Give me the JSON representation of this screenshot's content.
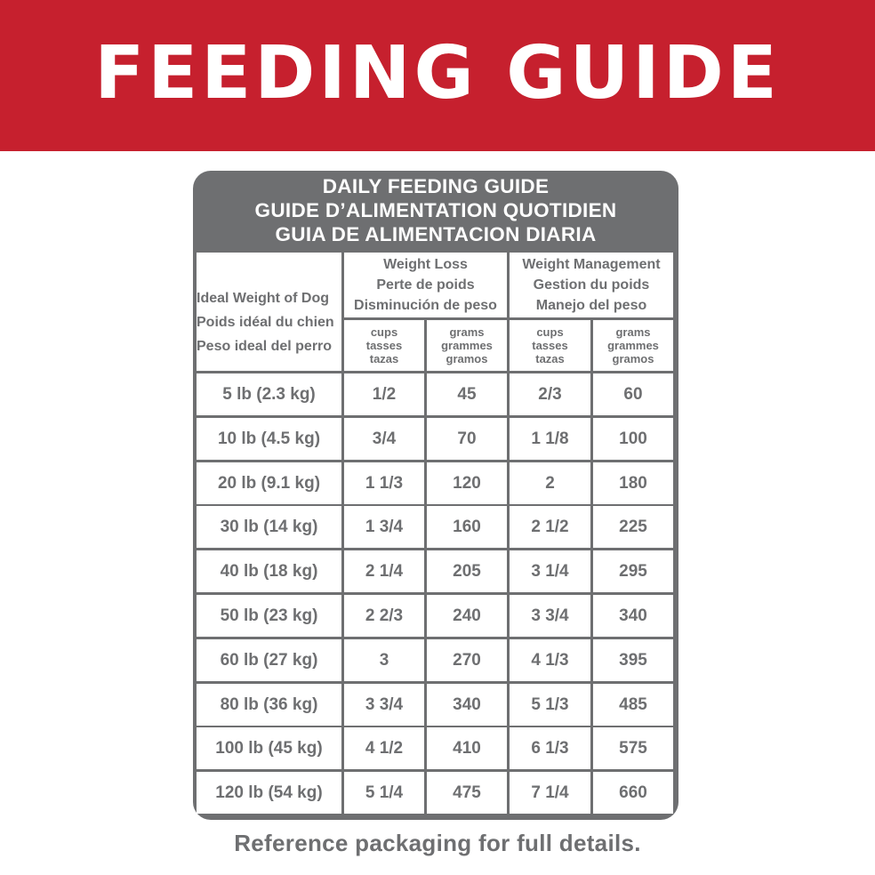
{
  "banner": {
    "title": "FEEDING GUIDE",
    "color": "#c6202e"
  },
  "guide": {
    "title_lines": [
      "DAILY FEEDING GUIDE",
      "GUIDE D’ALIMENTATION QUOTIDIEN",
      "GUIA DE ALIMENTACION DIARIA"
    ],
    "weight_header": [
      "Ideal Weight of Dog",
      "Poids idéal du chien",
      "Peso ideal del perro"
    ],
    "groups": [
      {
        "header": [
          "Weight Loss",
          "Perte de poids",
          "Disminución de peso"
        ],
        "units": [
          [
            "cups",
            "tasses",
            "tazas"
          ],
          [
            "grams",
            "grammes",
            "gramos"
          ]
        ]
      },
      {
        "header": [
          "Weight Management",
          "Gestion du poids",
          "Manejo del peso"
        ],
        "units": [
          [
            "cups",
            "tasses",
            "tazas"
          ],
          [
            "grams",
            "grammes",
            "gramos"
          ]
        ]
      }
    ],
    "rows": [
      {
        "weight": "5 lb (2.3 kg)",
        "loss_cups": "1/2",
        "loss_grams": "45",
        "mgmt_cups": "2/3",
        "mgmt_grams": "60"
      },
      {
        "weight": "10 lb (4.5 kg)",
        "loss_cups": "3/4",
        "loss_grams": "70",
        "mgmt_cups": "1 1/8",
        "mgmt_grams": "100"
      },
      {
        "weight": "20 lb (9.1 kg)",
        "loss_cups": "1 1/3",
        "loss_grams": "120",
        "mgmt_cups": "2",
        "mgmt_grams": "180"
      },
      {
        "weight": "30 lb (14 kg)",
        "loss_cups": "1 3/4",
        "loss_grams": "160",
        "mgmt_cups": "2 1/2",
        "mgmt_grams": "225"
      },
      {
        "weight": "40 lb (18 kg)",
        "loss_cups": "2 1/4",
        "loss_grams": "205",
        "mgmt_cups": "3 1/4",
        "mgmt_grams": "295"
      },
      {
        "weight": "50 lb (23 kg)",
        "loss_cups": "2 2/3",
        "loss_grams": "240",
        "mgmt_cups": "3 3/4",
        "mgmt_grams": "340"
      },
      {
        "weight": "60 lb (27 kg)",
        "loss_cups": "3",
        "loss_grams": "270",
        "mgmt_cups": "4 1/3",
        "mgmt_grams": "395"
      },
      {
        "weight": "80 lb (36 kg)",
        "loss_cups": "3 3/4",
        "loss_grams": "340",
        "mgmt_cups": "5 1/3",
        "mgmt_grams": "485"
      },
      {
        "weight": "100 lb (45 kg)",
        "loss_cups": "4 1/2",
        "loss_grams": "410",
        "mgmt_cups": "6 1/3",
        "mgmt_grams": "575"
      },
      {
        "weight": "120 lb (54 kg)",
        "loss_cups": "5 1/4",
        "loss_grams": "475",
        "mgmt_cups": "7 1/4",
        "mgmt_grams": "660"
      }
    ],
    "text_color": "#6e6f71"
  },
  "footer": {
    "note": "Reference packaging for full details."
  }
}
